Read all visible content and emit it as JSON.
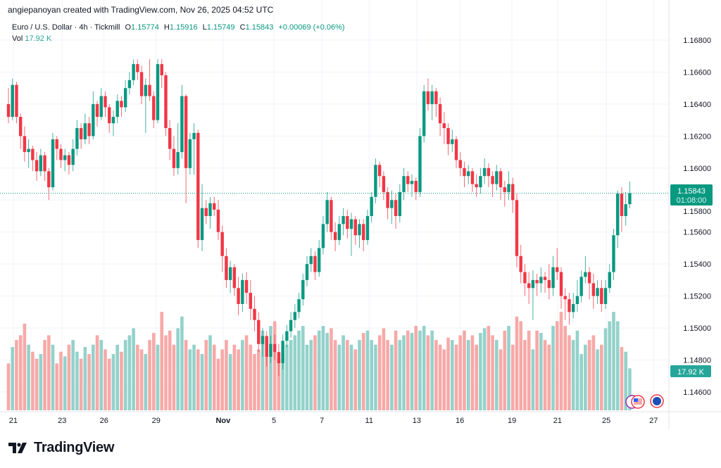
{
  "credit": "angiepanoyan created with TradingView.com, Nov 26, 2025 04:52 UTC",
  "legend": {
    "symbol": "Euro / U.S. Dollar · 4h · Tickmill",
    "o_label": "O",
    "o": "1.15774",
    "h_label": "H",
    "h": "1.15916",
    "l_label": "L",
    "l": "1.15749",
    "c_label": "C",
    "c": "1.15843",
    "change": "+0.00069 (+0.06%)",
    "vol_label": "Vol",
    "vol": "17.92 K"
  },
  "price_tag": {
    "price": "1.15843",
    "countdown": "01:08:00"
  },
  "volume_tag": "17.92 K",
  "logo_text": "TradingView",
  "colors": {
    "up": "#089981",
    "down": "#f23645",
    "vol_up": "#93d2cb",
    "vol_down": "#f7a9a7",
    "grid": "#f0f3fa"
  },
  "chart_data": {
    "type": "candlestick",
    "title": "Euro / U.S. Dollar · 4h · Tickmill",
    "ylim": [
      1.145,
      1.169
    ],
    "y_ticks": [
      "1.14600",
      "1.14800",
      "1.15000",
      "1.15200",
      "1.15400",
      "1.15600",
      "1.15800",
      "1.16000",
      "1.16200",
      "1.16400",
      "1.16600",
      "1.16800"
    ],
    "x_ticks": [
      {
        "label": "21",
        "index": 1.2
      },
      {
        "label": "23",
        "index": 13.3
      },
      {
        "label": "26",
        "index": 23.7
      },
      {
        "label": "29",
        "index": 36.6
      },
      {
        "label": "Nov",
        "index": 53.2
      },
      {
        "label": "5",
        "index": 65.8
      },
      {
        "label": "7",
        "index": 77.7
      },
      {
        "label": "11",
        "index": 89.4
      },
      {
        "label": "13",
        "index": 101.2
      },
      {
        "label": "16",
        "index": 111.9
      },
      {
        "label": "19",
        "index": 124.8
      },
      {
        "label": "21",
        "index": 136.1
      },
      {
        "label": "25",
        "index": 148.2
      },
      {
        "label": "27",
        "index": 159.9
      }
    ],
    "last_price": 1.15843,
    "ohlc": [
      [
        1.164,
        1.165,
        1.1628,
        1.1632
      ],
      [
        1.1632,
        1.1656,
        1.163,
        1.1652
      ],
      [
        1.1652,
        1.1654,
        1.1628,
        1.1632
      ],
      [
        1.1632,
        1.1634,
        1.1612,
        1.162
      ],
      [
        1.162,
        1.1626,
        1.1604,
        1.161
      ],
      [
        1.161,
        1.1618,
        1.16,
        1.1612
      ],
      [
        1.1612,
        1.1614,
        1.1598,
        1.1605
      ],
      [
        1.1605,
        1.161,
        1.1592,
        1.1598
      ],
      [
        1.1598,
        1.1612,
        1.1595,
        1.1608
      ],
      [
        1.1608,
        1.161,
        1.1592,
        1.1598
      ],
      [
        1.1598,
        1.16,
        1.158,
        1.1588
      ],
      [
        1.1588,
        1.1622,
        1.1586,
        1.1618
      ],
      [
        1.1618,
        1.162,
        1.1605,
        1.1612
      ],
      [
        1.1612,
        1.1615,
        1.16,
        1.1605
      ],
      [
        1.1605,
        1.1612,
        1.1598,
        1.1608
      ],
      [
        1.1608,
        1.161,
        1.1596,
        1.1602
      ],
      [
        1.1602,
        1.1618,
        1.1598,
        1.1612
      ],
      [
        1.1612,
        1.163,
        1.1608,
        1.1625
      ],
      [
        1.1625,
        1.1628,
        1.1612,
        1.1618
      ],
      [
        1.1618,
        1.1634,
        1.1615,
        1.1628
      ],
      [
        1.1628,
        1.1632,
        1.1615,
        1.162
      ],
      [
        1.162,
        1.1648,
        1.1618,
        1.164
      ],
      [
        1.164,
        1.1642,
        1.1626,
        1.1632
      ],
      [
        1.1632,
        1.165,
        1.163,
        1.1645
      ],
      [
        1.1645,
        1.1648,
        1.1632,
        1.1638
      ],
      [
        1.1638,
        1.164,
        1.1622,
        1.1628
      ],
      [
        1.1628,
        1.1636,
        1.162,
        1.1632
      ],
      [
        1.1632,
        1.1646,
        1.1628,
        1.1642
      ],
      [
        1.1642,
        1.1645,
        1.1632,
        1.1638
      ],
      [
        1.1638,
        1.1655,
        1.1635,
        1.165
      ],
      [
        1.165,
        1.166,
        1.1646,
        1.1655
      ],
      [
        1.1655,
        1.1668,
        1.1652,
        1.1665
      ],
      [
        1.1665,
        1.1668,
        1.1655,
        1.166
      ],
      [
        1.166,
        1.1664,
        1.164,
        1.1645
      ],
      [
        1.1645,
        1.1656,
        1.1622,
        1.1652
      ],
      [
        1.1652,
        1.1668,
        1.1642,
        1.1645
      ],
      [
        1.1645,
        1.1648,
        1.1625,
        1.163
      ],
      [
        1.163,
        1.1668,
        1.1628,
        1.1665
      ],
      [
        1.1665,
        1.1668,
        1.165,
        1.1658
      ],
      [
        1.1658,
        1.166,
        1.162,
        1.1625
      ],
      [
        1.1625,
        1.163,
        1.1605,
        1.1612
      ],
      [
        1.1612,
        1.162,
        1.1595,
        1.16
      ],
      [
        1.16,
        1.1628,
        1.1596,
        1.161
      ],
      [
        1.161,
        1.1652,
        1.1606,
        1.1645
      ],
      [
        1.1645,
        1.1646,
        1.1578,
        1.16
      ],
      [
        1.16,
        1.1622,
        1.1596,
        1.1618
      ],
      [
        1.1618,
        1.1628,
        1.1596,
        1.1622
      ],
      [
        1.1622,
        1.1624,
        1.155,
        1.1555
      ],
      [
        1.1555,
        1.159,
        1.1548,
        1.1575
      ],
      [
        1.1575,
        1.158,
        1.1565,
        1.157
      ],
      [
        1.157,
        1.1582,
        1.1562,
        1.1578
      ],
      [
        1.1578,
        1.1582,
        1.157,
        1.1574
      ],
      [
        1.1574,
        1.158,
        1.1555,
        1.156
      ],
      [
        1.156,
        1.1564,
        1.1535,
        1.1545
      ],
      [
        1.1545,
        1.155,
        1.1525,
        1.153
      ],
      [
        1.153,
        1.1542,
        1.1522,
        1.1538
      ],
      [
        1.1538,
        1.154,
        1.152,
        1.1525
      ],
      [
        1.1525,
        1.1532,
        1.1508,
        1.1515
      ],
      [
        1.1515,
        1.1534,
        1.151,
        1.153
      ],
      [
        1.153,
        1.1535,
        1.1515,
        1.1522
      ],
      [
        1.1522,
        1.153,
        1.1505,
        1.1512
      ],
      [
        1.1512,
        1.152,
        1.1498,
        1.1505
      ],
      [
        1.1505,
        1.151,
        1.1485,
        1.149
      ],
      [
        1.149,
        1.15,
        1.1482,
        1.1495
      ],
      [
        1.1495,
        1.1498,
        1.1476,
        1.1482
      ],
      [
        1.1482,
        1.1495,
        1.1478,
        1.149
      ],
      [
        1.149,
        1.1496,
        1.148,
        1.1485
      ],
      [
        1.1485,
        1.149,
        1.147,
        1.1478
      ],
      [
        1.1478,
        1.1496,
        1.1474,
        1.1492
      ],
      [
        1.1492,
        1.1502,
        1.1488,
        1.1498
      ],
      [
        1.1498,
        1.151,
        1.1494,
        1.1505
      ],
      [
        1.1505,
        1.1515,
        1.15,
        1.151
      ],
      [
        1.151,
        1.1522,
        1.1506,
        1.1518
      ],
      [
        1.1518,
        1.1534,
        1.1514,
        1.153
      ],
      [
        1.153,
        1.1545,
        1.1526,
        1.154
      ],
      [
        1.154,
        1.155,
        1.1535,
        1.1545
      ],
      [
        1.1545,
        1.1548,
        1.153,
        1.1535
      ],
      [
        1.1535,
        1.1555,
        1.1532,
        1.155
      ],
      [
        1.155,
        1.157,
        1.1546,
        1.1565
      ],
      [
        1.1565,
        1.1585,
        1.156,
        1.158
      ],
      [
        1.158,
        1.1582,
        1.1555,
        1.156
      ],
      [
        1.156,
        1.1566,
        1.1548,
        1.1555
      ],
      [
        1.1555,
        1.157,
        1.1552,
        1.1565
      ],
      [
        1.1565,
        1.1575,
        1.1558,
        1.157
      ],
      [
        1.157,
        1.1574,
        1.1556,
        1.1562
      ],
      [
        1.1562,
        1.1572,
        1.1545,
        1.1568
      ],
      [
        1.1568,
        1.157,
        1.1552,
        1.1558
      ],
      [
        1.1558,
        1.1568,
        1.155,
        1.1565
      ],
      [
        1.1565,
        1.1568,
        1.1548,
        1.1555
      ],
      [
        1.1555,
        1.1574,
        1.1552,
        1.157
      ],
      [
        1.157,
        1.1585,
        1.1566,
        1.1582
      ],
      [
        1.1582,
        1.1606,
        1.1578,
        1.1602
      ],
      [
        1.1602,
        1.1604,
        1.1588,
        1.1595
      ],
      [
        1.1595,
        1.1598,
        1.158,
        1.1585
      ],
      [
        1.1585,
        1.1588,
        1.1568,
        1.1575
      ],
      [
        1.1575,
        1.1586,
        1.1565,
        1.158
      ],
      [
        1.158,
        1.1584,
        1.1562,
        1.157
      ],
      [
        1.157,
        1.159,
        1.1566,
        1.1585
      ],
      [
        1.1585,
        1.16,
        1.158,
        1.1595
      ],
      [
        1.1595,
        1.1598,
        1.1585,
        1.159
      ],
      [
        1.159,
        1.1596,
        1.1582,
        1.1592
      ],
      [
        1.1592,
        1.1594,
        1.158,
        1.1585
      ],
      [
        1.1585,
        1.1625,
        1.1582,
        1.162
      ],
      [
        1.162,
        1.1652,
        1.1616,
        1.1648
      ],
      [
        1.1648,
        1.1656,
        1.1636,
        1.164
      ],
      [
        1.164,
        1.1652,
        1.163,
        1.1648
      ],
      [
        1.1648,
        1.165,
        1.1632,
        1.164
      ],
      [
        1.164,
        1.1644,
        1.162,
        1.1628
      ],
      [
        1.1628,
        1.1635,
        1.1615,
        1.1625
      ],
      [
        1.1625,
        1.1628,
        1.1608,
        1.1615
      ],
      [
        1.1615,
        1.1624,
        1.161,
        1.1618
      ],
      [
        1.1618,
        1.162,
        1.16,
        1.1605
      ],
      [
        1.1605,
        1.161,
        1.1595,
        1.16
      ],
      [
        1.16,
        1.1604,
        1.1588,
        1.1595
      ],
      [
        1.1595,
        1.1602,
        1.159,
        1.1598
      ],
      [
        1.1598,
        1.16,
        1.1585,
        1.159
      ],
      [
        1.159,
        1.1596,
        1.1582,
        1.1588
      ],
      [
        1.1588,
        1.16,
        1.1584,
        1.1595
      ],
      [
        1.1595,
        1.1606,
        1.159,
        1.16
      ],
      [
        1.16,
        1.1603,
        1.1588,
        1.1595
      ],
      [
        1.1595,
        1.1598,
        1.1582,
        1.159
      ],
      [
        1.159,
        1.1602,
        1.1586,
        1.1598
      ],
      [
        1.1598,
        1.16,
        1.158,
        1.1588
      ],
      [
        1.1588,
        1.1592,
        1.1576,
        1.1585
      ],
      [
        1.1585,
        1.1598,
        1.158,
        1.159
      ],
      [
        1.159,
        1.1594,
        1.1572,
        1.158
      ],
      [
        1.158,
        1.1584,
        1.1538,
        1.1545
      ],
      [
        1.1545,
        1.1552,
        1.1528,
        1.1535
      ],
      [
        1.1535,
        1.154,
        1.152,
        1.1528
      ],
      [
        1.1528,
        1.1535,
        1.1515,
        1.1525
      ],
      [
        1.1525,
        1.1536,
        1.1505,
        1.153
      ],
      [
        1.153,
        1.1534,
        1.152,
        1.1528
      ],
      [
        1.1528,
        1.1538,
        1.1522,
        1.1532
      ],
      [
        1.1532,
        1.1535,
        1.1522,
        1.153
      ],
      [
        1.153,
        1.154,
        1.1518,
        1.1525
      ],
      [
        1.1525,
        1.1545,
        1.152,
        1.1538
      ],
      [
        1.1538,
        1.155,
        1.153,
        1.1535
      ],
      [
        1.1535,
        1.1538,
        1.1512,
        1.152
      ],
      [
        1.152,
        1.1525,
        1.1505,
        1.1518
      ],
      [
        1.1518,
        1.1522,
        1.1502,
        1.151
      ],
      [
        1.151,
        1.1522,
        1.1506,
        1.1515
      ],
      [
        1.1515,
        1.153,
        1.151,
        1.152
      ],
      [
        1.152,
        1.1536,
        1.1516,
        1.1532
      ],
      [
        1.1532,
        1.1545,
        1.1528,
        1.1535
      ],
      [
        1.1535,
        1.1538,
        1.1518,
        1.1528
      ],
      [
        1.1528,
        1.1534,
        1.1512,
        1.152
      ],
      [
        1.152,
        1.153,
        1.1515,
        1.1525
      ],
      [
        1.1525,
        1.153,
        1.151,
        1.1515
      ],
      [
        1.1515,
        1.153,
        1.1512,
        1.1525
      ],
      [
        1.1525,
        1.154,
        1.1522,
        1.1535
      ],
      [
        1.1535,
        1.1562,
        1.153,
        1.1558
      ],
      [
        1.1558,
        1.1586,
        1.155,
        1.1584
      ],
      [
        1.1584,
        1.1588,
        1.156,
        1.157
      ],
      [
        1.157,
        1.1585,
        1.1564,
        1.15774
      ],
      [
        1.15774,
        1.15916,
        1.15749,
        1.15843
      ]
    ],
    "volume_k": [
      20,
      27,
      30,
      32,
      37,
      28,
      25,
      22,
      24,
      30,
      32,
      28,
      20,
      25,
      23,
      28,
      30,
      25,
      22,
      27,
      24,
      28,
      32,
      30,
      26,
      22,
      24,
      28,
      25,
      30,
      32,
      35,
      28,
      26,
      24,
      30,
      33,
      28,
      42,
      32,
      34,
      28,
      35,
      40,
      30,
      26,
      28,
      26,
      24,
      30,
      32,
      28,
      22,
      26,
      30,
      24,
      28,
      26,
      30,
      32,
      28,
      24,
      26,
      34,
      30,
      36,
      38,
      22,
      24,
      28,
      30,
      32,
      34,
      36,
      28,
      30,
      32,
      34,
      36,
      33,
      35,
      30,
      28,
      32,
      30,
      28,
      26,
      30,
      33,
      34,
      30,
      28,
      32,
      35,
      30,
      28,
      34,
      30,
      32,
      34,
      33,
      36,
      34,
      36,
      32,
      34,
      30,
      28,
      26,
      31,
      30,
      28,
      32,
      34,
      30,
      32,
      28,
      33,
      35,
      36,
      32,
      30,
      26,
      34,
      36,
      28,
      40,
      38,
      30,
      34,
      26,
      34,
      33,
      30,
      28,
      36,
      38,
      42,
      36,
      32,
      30,
      34,
      24,
      28,
      30,
      32,
      26,
      28,
      35,
      38,
      42,
      38,
      27,
      25,
      17.92
    ]
  }
}
